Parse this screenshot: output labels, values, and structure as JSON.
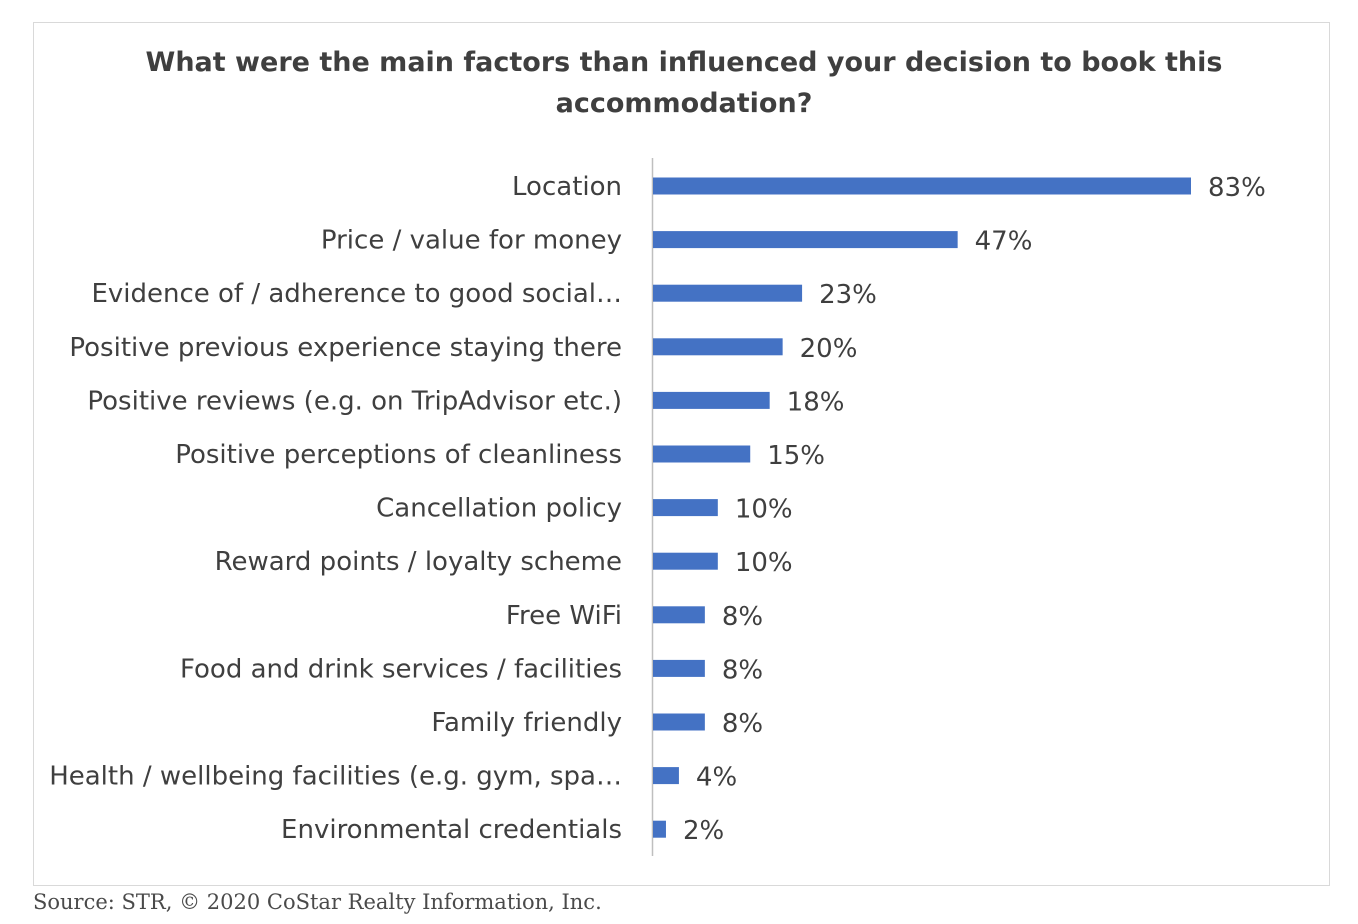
{
  "source_note": "Source: STR, © 2020 CoStar Realty Information, Inc.",
  "colors": {
    "bar": "#4472c4",
    "text": "#3f3f3f",
    "axis": "#bfbfbf",
    "frame": "#d9d9d9"
  },
  "chart_data": {
    "type": "bar",
    "orientation": "horizontal",
    "title_lines": [
      "What were the main factors than influenced your decision to book this",
      "accommodation?"
    ],
    "categories": [
      "Location",
      "Price / value for money",
      "Evidence of / adherence to good social…",
      "Positive previous experience staying there",
      "Positive reviews (e.g. on TripAdvisor etc.)",
      "Positive perceptions of cleanliness",
      "Cancellation policy",
      "Reward points / loyalty scheme",
      "Free WiFi",
      "Food and drink services / facilities",
      "Family friendly",
      "Health / wellbeing facilities (e.g. gym, spa…",
      "Environmental credentials"
    ],
    "values": [
      83,
      47,
      23,
      20,
      18,
      15,
      10,
      10,
      8,
      8,
      8,
      4,
      2
    ],
    "value_labels": [
      "83%",
      "47%",
      "23%",
      "20%",
      "18%",
      "15%",
      "10%",
      "10%",
      "8%",
      "8%",
      "8%",
      "4%",
      "2%"
    ],
    "xlim": [
      0,
      83
    ],
    "grid": false,
    "legend": "none"
  }
}
